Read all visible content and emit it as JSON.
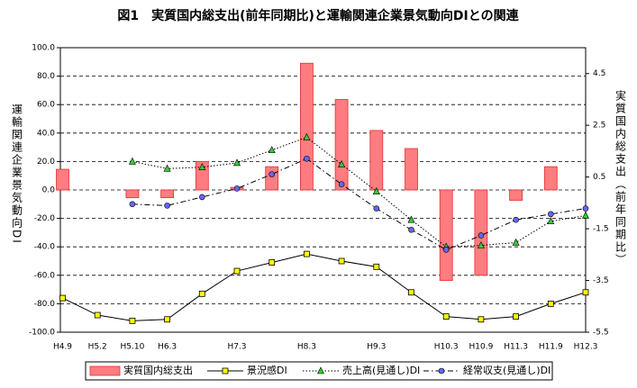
{
  "chart_data": {
    "type": "combo",
    "title": "図1　実質国内総支出(前年同期比)と運輸関連企業景気動向DIとの関連",
    "y_label": "運輸関連企業景気動向DI",
    "y2_label": "実質国内総支出（前年同期比）",
    "categories": [
      "H4.9",
      "H5.2",
      "H5.10",
      "H6.3",
      null,
      "H7.3",
      null,
      "H8.3",
      null,
      "H9.3",
      null,
      "H10.3",
      "H10.9",
      "H11.3",
      "H11.9",
      "H12.3"
    ],
    "ylim": [
      -100,
      100
    ],
    "yticks": [
      {
        "value": 100,
        "label": "100.0"
      },
      {
        "value": 80,
        "label": "80.0"
      },
      {
        "value": 60,
        "label": "60.0"
      },
      {
        "value": 40,
        "label": "40.0"
      },
      {
        "value": 20,
        "label": "20.0"
      },
      {
        "value": 0,
        "label": "0.0"
      },
      {
        "value": -20,
        "label": "-20.0"
      },
      {
        "value": -40,
        "label": "-40.0"
      },
      {
        "value": -60,
        "label": "-60.0"
      },
      {
        "value": -80,
        "label": "-80.0"
      },
      {
        "value": -100,
        "label": "-100.0"
      }
    ],
    "y2lim": [
      -5.5,
      5.5
    ],
    "y2ticks": [
      4.5,
      2.5,
      0.5,
      -1.5,
      -3.5,
      -5.5
    ],
    "grid": true,
    "legend": "bottom",
    "series": [
      {
        "name": "実質国内総支出",
        "type": "bar",
        "axis": "y2",
        "color": "#ff7c80",
        "values": [
          0.8,
          null,
          -0.3,
          -0.3,
          1.1,
          0.1,
          0.9,
          4.9,
          3.5,
          2.3,
          1.6,
          -3.5,
          -3.3,
          -0.4,
          0.9,
          null
        ]
      },
      {
        "name": "景況感DI",
        "type": "line",
        "color": "#ffff00",
        "marker": "square",
        "dash": "solid",
        "values": [
          -76,
          -88,
          -92,
          -91,
          -73,
          -57,
          -51,
          -45,
          -50,
          -54,
          -72,
          -89,
          -91,
          -89,
          -80,
          -72
        ]
      },
      {
        "name": "売上高(見通し)DI",
        "type": "line",
        "color": "#33cc33",
        "marker": "triangle",
        "dash": "dotted",
        "values": [
          null,
          null,
          20,
          15,
          16,
          19,
          28,
          37,
          18,
          -1,
          -21,
          -40,
          -39,
          -37,
          -22,
          -18
        ]
      },
      {
        "name": "経常収支(見通し)DI",
        "type": "line",
        "color": "#6666ff",
        "marker": "circle",
        "dash": "dashdot",
        "values": [
          null,
          null,
          -10,
          -11,
          -5,
          1,
          11,
          22,
          4,
          -13,
          -28,
          -42,
          -32,
          -21,
          -17,
          -13
        ]
      }
    ]
  }
}
